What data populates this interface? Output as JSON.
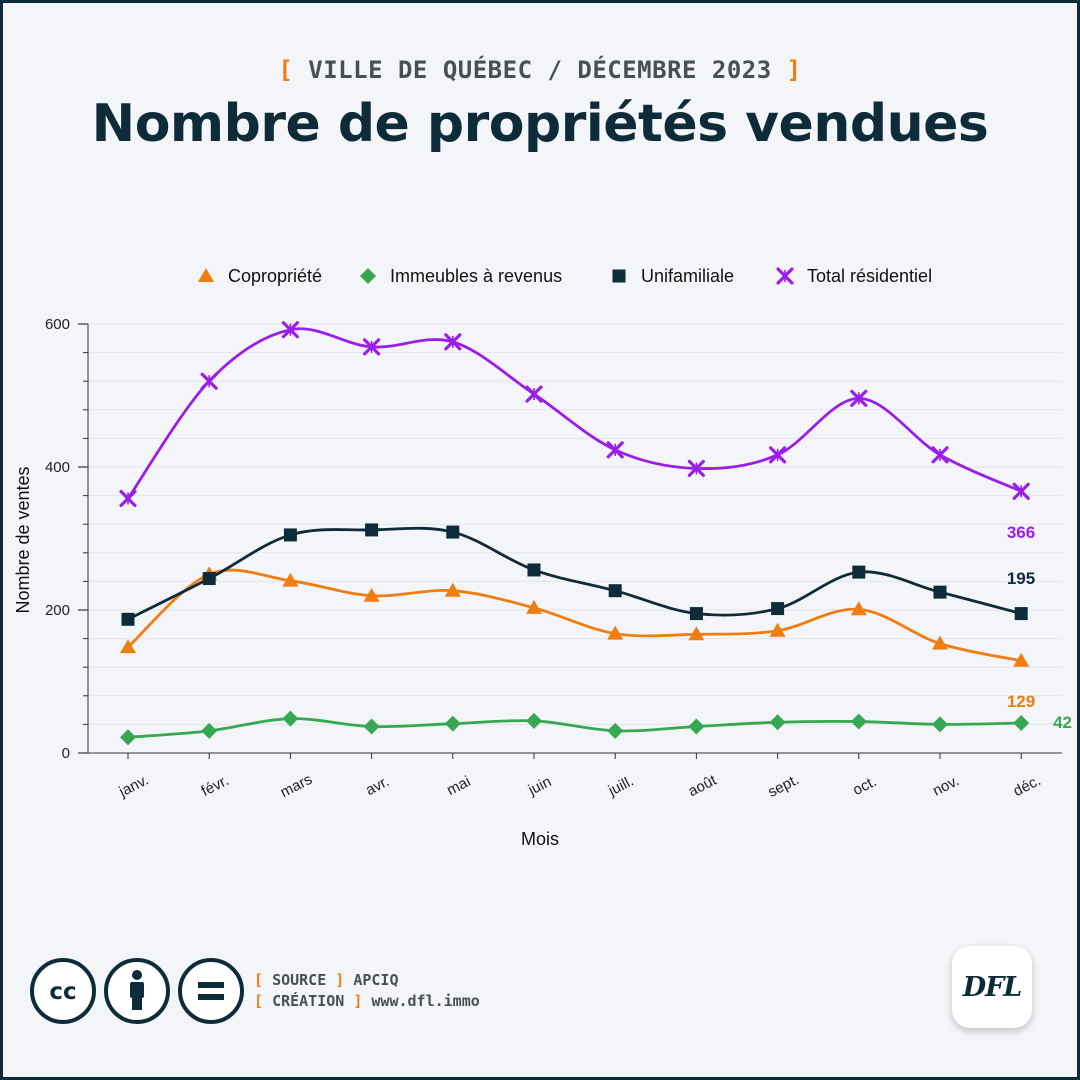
{
  "header": {
    "kicker_open": "[",
    "kicker_text": "VILLE DE QUÉBEC / DÉCEMBRE 2023",
    "kicker_close": "]",
    "title": "Nombre de propriétés vendues"
  },
  "chart_data": {
    "type": "line",
    "title": "Nombre de propriétés vendues",
    "xlabel": "Mois",
    "ylabel": "Nombre de ventes",
    "categories": [
      "janv.",
      "févr.",
      "mars",
      "avr.",
      "mai",
      "juin",
      "juill.",
      "août",
      "sept.",
      "oct.",
      "nov.",
      "déc."
    ],
    "ylim": [
      0,
      600
    ],
    "yticks": [
      0,
      200,
      400,
      600
    ],
    "grid": true,
    "legend_position": "top",
    "series": [
      {
        "name": "Copropriété",
        "marker": "triangle",
        "color": "#f07d12",
        "values": [
          148,
          250,
          241,
          220,
          227,
          203,
          167,
          166,
          171,
          201,
          153,
          129
        ],
        "end_label": "129"
      },
      {
        "name": "Immeubles à revenus",
        "marker": "diamond",
        "color": "#36a852",
        "values": [
          22,
          31,
          48,
          37,
          41,
          45,
          31,
          37,
          43,
          44,
          40,
          42
        ],
        "end_label": "42"
      },
      {
        "name": "Unifamiliale",
        "marker": "square",
        "color": "#0d2b38",
        "values": [
          187,
          244,
          305,
          312,
          309,
          256,
          227,
          195,
          202,
          253,
          225,
          195
        ],
        "end_label": "195"
      },
      {
        "name": "Total résidentiel",
        "marker": "star",
        "color": "#9b1ee8",
        "values": [
          356,
          520,
          592,
          568,
          575,
          502,
          424,
          398,
          417,
          496,
          417,
          366
        ],
        "end_label": "366"
      }
    ]
  },
  "footer": {
    "source_open": "[",
    "source_label": "SOURCE",
    "source_close": "]",
    "source_value": "APCIQ",
    "creation_open": "[",
    "creation_label": "CRÉATION",
    "creation_close": "]",
    "creation_value": "www.dfl.immo",
    "cc_text": "cc",
    "logo_text": "DFL"
  }
}
